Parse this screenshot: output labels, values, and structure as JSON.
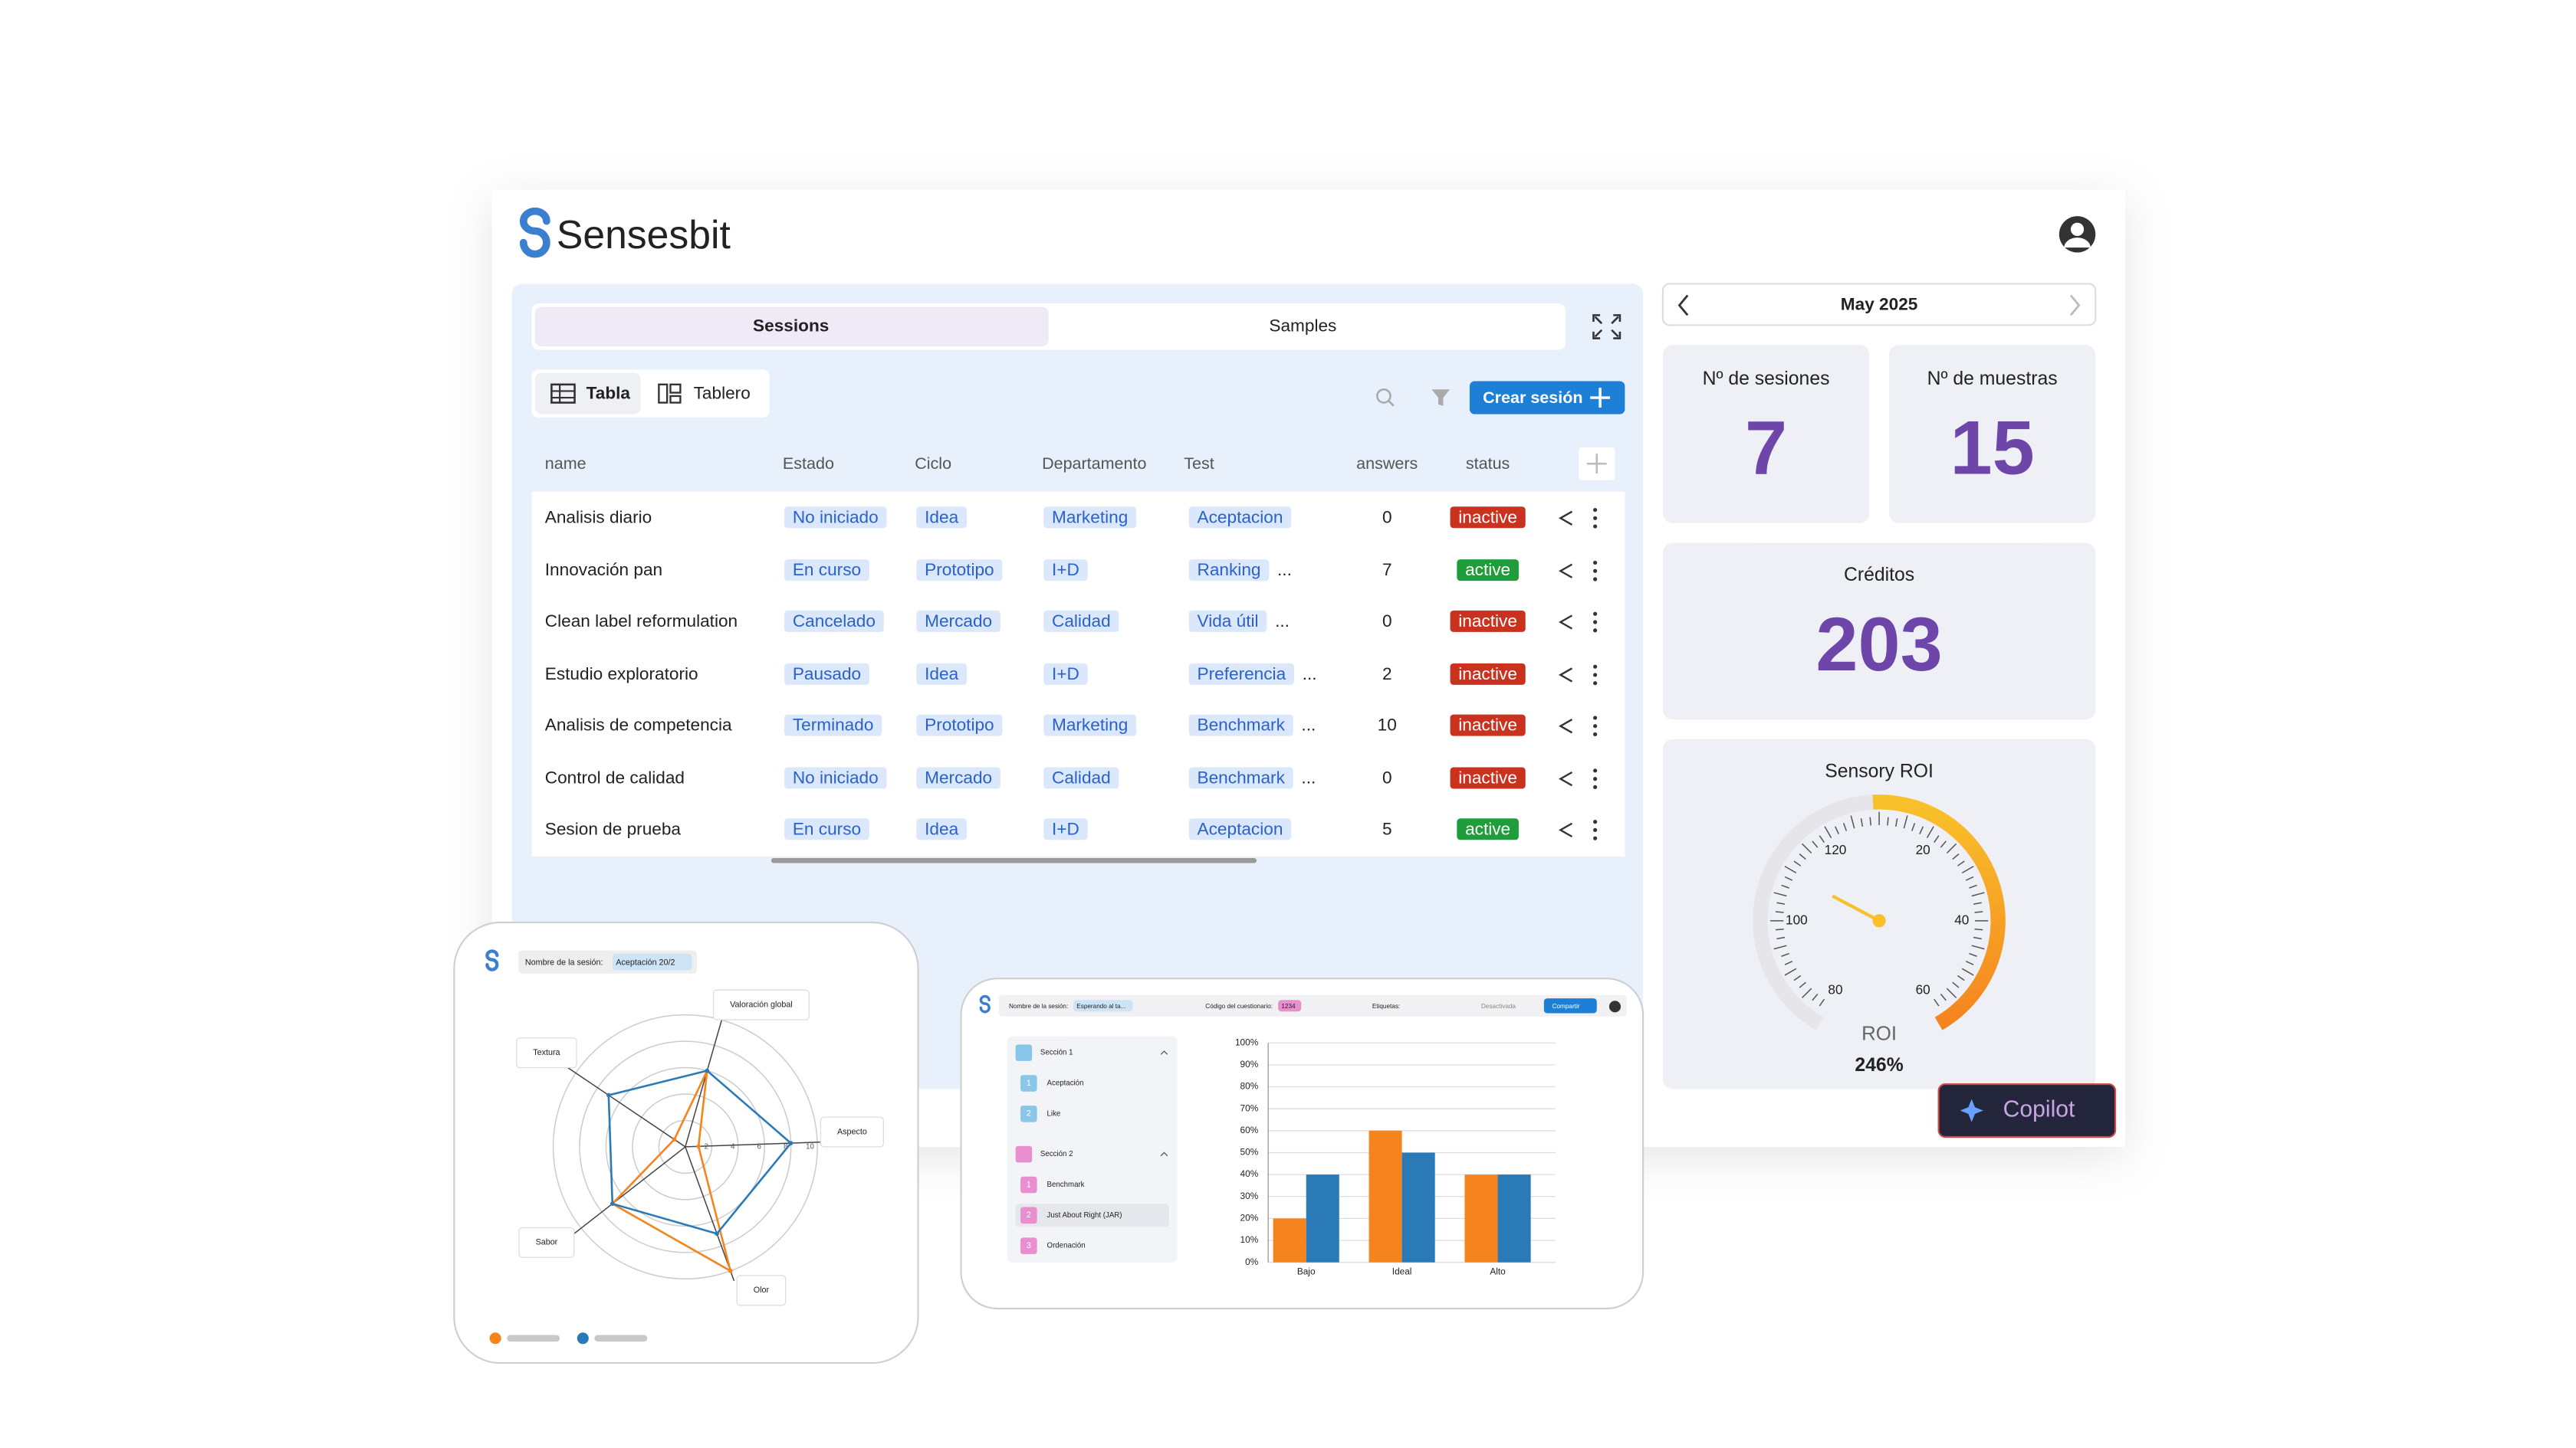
{
  "header": {
    "brand": "Sensesbit"
  },
  "tabs": [
    "Sessions",
    "Samples"
  ],
  "views": [
    "Tabla",
    "Tablero"
  ],
  "create_button": "Crear sesión",
  "table": {
    "columns": [
      "name",
      "Estado",
      "Ciclo",
      "Departamento",
      "Test",
      "answers",
      "status"
    ],
    "rows": [
      {
        "name": "Analisis diario",
        "estado": "No iniciado",
        "ciclo": "Idea",
        "departamento": "Marketing",
        "test": "Aceptacion",
        "answers": 0,
        "status": "inactive"
      },
      {
        "name": "Innovación pan",
        "estado": "En curso",
        "ciclo": "Prototipo",
        "departamento": "I+D",
        "test": "Ranking",
        "more": "...",
        "answers": 7,
        "status": "active"
      },
      {
        "name": "Clean label reformulation",
        "estado": "Cancelado",
        "ciclo": "Mercado",
        "departamento": "Calidad",
        "test": "Vida útil",
        "more": "...",
        "answers": 0,
        "status": "inactive"
      },
      {
        "name": "Estudio exploratorio",
        "estado": "Pausado",
        "ciclo": "Idea",
        "departamento": "I+D",
        "test": "Preferencia",
        "more": "...",
        "answers": 2,
        "status": "inactive"
      },
      {
        "name": "Analisis de competencia",
        "estado": "Terminado",
        "ciclo": "Prototipo",
        "departamento": "Marketing",
        "test": "Benchmark",
        "more": "...",
        "answers": 10,
        "status": "inactive"
      },
      {
        "name": "Control de calidad",
        "estado": "No iniciado",
        "ciclo": "Mercado",
        "departamento": "Calidad",
        "test": "Benchmark",
        "more": "...",
        "answers": 0,
        "status": "inactive"
      },
      {
        "name": "Sesion de prueba",
        "estado": "En curso",
        "ciclo": "Idea",
        "departamento": "I+D",
        "test": "Aceptacion",
        "answers": 5,
        "status": "active"
      }
    ]
  },
  "calendar": "May 2025",
  "stats": [
    {
      "label": "Nº de sesiones",
      "value": 7
    },
    {
      "label": "Nº de muestras",
      "value": 15
    }
  ],
  "credits": {
    "label": "Créditos",
    "value": 203
  },
  "roi": {
    "title": "Sensory ROI",
    "gauge_labels": [
      80,
      100,
      120,
      20,
      40,
      60
    ],
    "label": "ROI",
    "value_label": "246%"
  },
  "copilot": "Copilot",
  "radar_card": {
    "session_label": "Nombre de la sesión:",
    "session_name": "Aceptación 20/2",
    "chart_data": {
      "type": "radar",
      "axes": [
        "Valoración global",
        "Aspecto",
        "Olor",
        "Sabor",
        "Textura"
      ],
      "rlim": [
        0,
        10
      ],
      "rticks": [
        2,
        4,
        6,
        8,
        10
      ],
      "series": [
        {
          "color": "#f5841f",
          "values": [
            6,
            1,
            10,
            7,
            1
          ]
        },
        {
          "color": "#2a7ab8",
          "values": [
            6,
            8,
            7,
            7,
            7
          ]
        }
      ]
    }
  },
  "bar_card": {
    "session_label": "Nombre de la sesión:",
    "session_name": "Esperando al ta...",
    "code_label": "Código del cuestionario:",
    "code": "1234",
    "tags_label": "Etiquetas:",
    "toggle": "Desactivada",
    "share": "Compartir",
    "sections": [
      {
        "title": "Sección 1",
        "items": [
          {
            "n": 1,
            "label": "Aceptación"
          },
          {
            "n": 2,
            "label": "Like"
          }
        ]
      },
      {
        "title": "Sección 2",
        "items": [
          {
            "n": 1,
            "label": "Benchmark"
          },
          {
            "n": 2,
            "label": "Just About Right (JAR)"
          },
          {
            "n": 3,
            "label": "Ordenación"
          }
        ]
      }
    ],
    "chart_data": {
      "type": "bar",
      "categories": [
        "Bajo",
        "Ideal",
        "Alto"
      ],
      "series": [
        {
          "color": "#f5841f",
          "values": [
            20,
            60,
            40
          ]
        },
        {
          "color": "#2a7ab8",
          "values": [
            40,
            50,
            40
          ]
        }
      ],
      "ylim": [
        0,
        100
      ],
      "yticks": [
        {
          "value": 0,
          "label": "0%"
        },
        {
          "value": 10,
          "label": "10%"
        },
        {
          "value": 20,
          "label": "20%"
        },
        {
          "value": 30,
          "label": "30%"
        },
        {
          "value": 40,
          "label": "40%"
        },
        {
          "value": 50,
          "label": "50%"
        },
        {
          "value": 60,
          "label": "60%"
        },
        {
          "value": 70,
          "label": "70%"
        },
        {
          "value": 80,
          "label": "80%"
        },
        {
          "value": 90,
          "label": "90%"
        },
        {
          "value": 100,
          "label": "100%"
        }
      ],
      "grid": true
    }
  }
}
